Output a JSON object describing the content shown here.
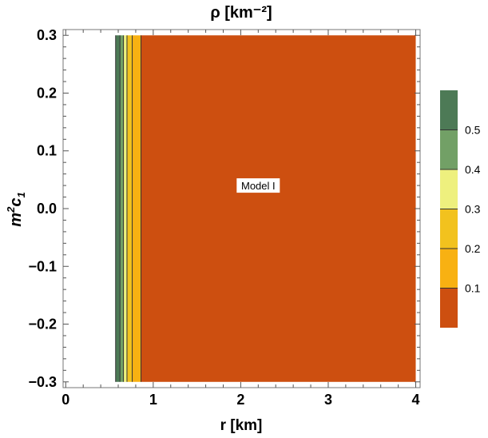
{
  "chart_data": {
    "type": "heatmap",
    "title": "ρ [km⁻²]",
    "xlabel": "r [km]",
    "ylabel_base": "m",
    "ylabel_sup": "2",
    "ylabel_tail": "c",
    "ylabel_sub": "1",
    "xlim": [
      -0.03,
      4.05
    ],
    "ylim": [
      -0.31,
      0.31
    ],
    "x_ticks": [
      0,
      1,
      2,
      3,
      4
    ],
    "x_tick_labels": [
      "0",
      "1",
      "2",
      "3",
      "4"
    ],
    "y_ticks": [
      0.3,
      0.2,
      0.1,
      0.0,
      -0.1,
      -0.2,
      -0.3
    ],
    "y_tick_labels": [
      "0.3",
      "0.2",
      "0.1",
      "0.0",
      "−0.1",
      "−0.2",
      "−0.3"
    ],
    "plot_range": {
      "x": [
        0.0,
        4.0
      ],
      "y": [
        -0.3,
        0.3
      ]
    },
    "bands": [
      {
        "x_from": 0.57,
        "x_to": 0.62,
        "level": "0.5+",
        "color": "#4d7a56"
      },
      {
        "x_from": 0.62,
        "x_to": 0.66,
        "level": "0.4–0.5",
        "color": "#72a066"
      },
      {
        "x_from": 0.66,
        "x_to": 0.7,
        "level": "0.3–0.4",
        "color": "#eef07e"
      },
      {
        "x_from": 0.7,
        "x_to": 0.76,
        "level": "0.2–0.3",
        "color": "#f2c21e"
      },
      {
        "x_from": 0.76,
        "x_to": 0.86,
        "level": "0.1–0.2",
        "color": "#f8b112"
      },
      {
        "x_from": 0.86,
        "x_to": 4.0,
        "level": "0–0.1",
        "color": "#cd4f10"
      }
    ],
    "legend": {
      "placement": "right",
      "range": [
        0.0,
        0.6
      ],
      "levels": [
        0.1,
        0.2,
        0.3,
        0.4,
        0.5
      ],
      "level_labels": [
        "0.1",
        "0.2",
        "0.3",
        "0.4",
        "0.5"
      ],
      "segments": [
        {
          "from": 0.0,
          "to": 0.1,
          "color": "#cd4f10"
        },
        {
          "from": 0.1,
          "to": 0.2,
          "color": "#f8b112"
        },
        {
          "from": 0.2,
          "to": 0.3,
          "color": "#f2c21e"
        },
        {
          "from": 0.3,
          "to": 0.4,
          "color": "#eef07e"
        },
        {
          "from": 0.4,
          "to": 0.5,
          "color": "#72a066"
        },
        {
          "from": 0.5,
          "to": 0.6,
          "color": "#4d7a56"
        }
      ]
    },
    "annotation": {
      "text": "Model I",
      "x": 2.2,
      "y": 0.04
    }
  }
}
